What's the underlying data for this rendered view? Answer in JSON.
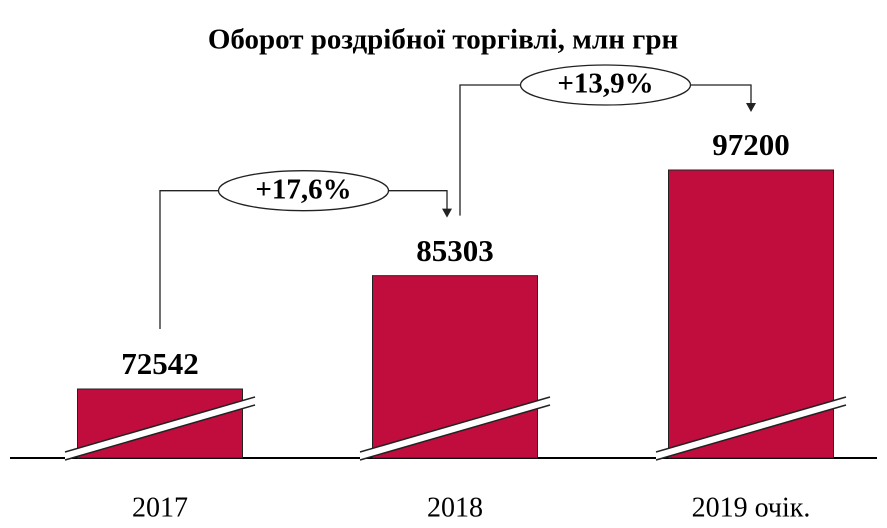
{
  "chart_data": {
    "type": "bar",
    "title": "Оборот роздрібної торгівлі, млн грн",
    "categories": [
      "2017",
      "2018",
      "2019 очік."
    ],
    "values": [
      72542,
      85303,
      97200
    ],
    "color": "#c10d3e",
    "annotations": [
      "+17,6%",
      "+13,9%"
    ]
  }
}
